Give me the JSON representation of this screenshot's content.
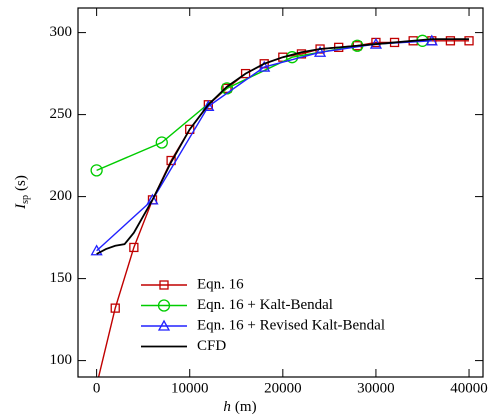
{
  "chart_data": {
    "type": "line",
    "x_label": {
      "symbol": "h",
      "unit": "(m)"
    },
    "y_label": {
      "symbol": "I",
      "subscript": "sp",
      "unit": "(s)"
    },
    "xlim": [
      -2000,
      41500
    ],
    "ylim": [
      90,
      315
    ],
    "xticks": [
      0,
      10000,
      20000,
      30000,
      40000
    ],
    "yticks": [
      100,
      150,
      200,
      250,
      300
    ],
    "legend": "lower-right",
    "series": [
      {
        "name": "Eqn. 16",
        "color": "#c00000",
        "marker": "square",
        "x": [
          0,
          2000,
          4000,
          6000,
          8000,
          10000,
          12000,
          14000,
          16000,
          18000,
          20000,
          22000,
          24000,
          26000,
          28000,
          30000,
          32000,
          34000,
          36000,
          38000,
          40000
        ],
        "values": [
          85,
          132,
          169,
          198,
          222,
          241,
          256,
          266,
          275,
          281,
          285,
          287,
          290,
          291,
          292,
          294,
          294,
          295,
          295,
          295,
          295
        ]
      },
      {
        "name": "Eqn. 16 + Kalt-Bendal",
        "color": "#00cc00",
        "marker": "circle",
        "x": [
          0,
          7000,
          14000,
          21000,
          28000,
          35000
        ],
        "values": [
          216,
          233,
          266,
          285,
          292,
          295
        ]
      },
      {
        "name": "Eqn. 16 + Revised Kalt-Bendal",
        "color": "#2222ff",
        "marker": "triangle",
        "x": [
          0,
          6000,
          12000,
          18000,
          24000,
          30000,
          36000
        ],
        "values": [
          167,
          198,
          255,
          279,
          288,
          293,
          295
        ]
      },
      {
        "name": "CFD",
        "color": "#000000",
        "marker": "none",
        "x": [
          0,
          1000,
          2000,
          3000,
          4000,
          5000,
          6000,
          8000,
          10000,
          12000,
          14000,
          16000,
          18000,
          20000,
          22000,
          24000,
          26000,
          28000,
          30000,
          32000,
          34000,
          36000,
          38000,
          40000
        ],
        "values": [
          165,
          168,
          170,
          171,
          178,
          188,
          198,
          221,
          241,
          256,
          267,
          275,
          281,
          285,
          288,
          290,
          291,
          292,
          293,
          294,
          295,
          296,
          296,
          296
        ]
      }
    ]
  }
}
